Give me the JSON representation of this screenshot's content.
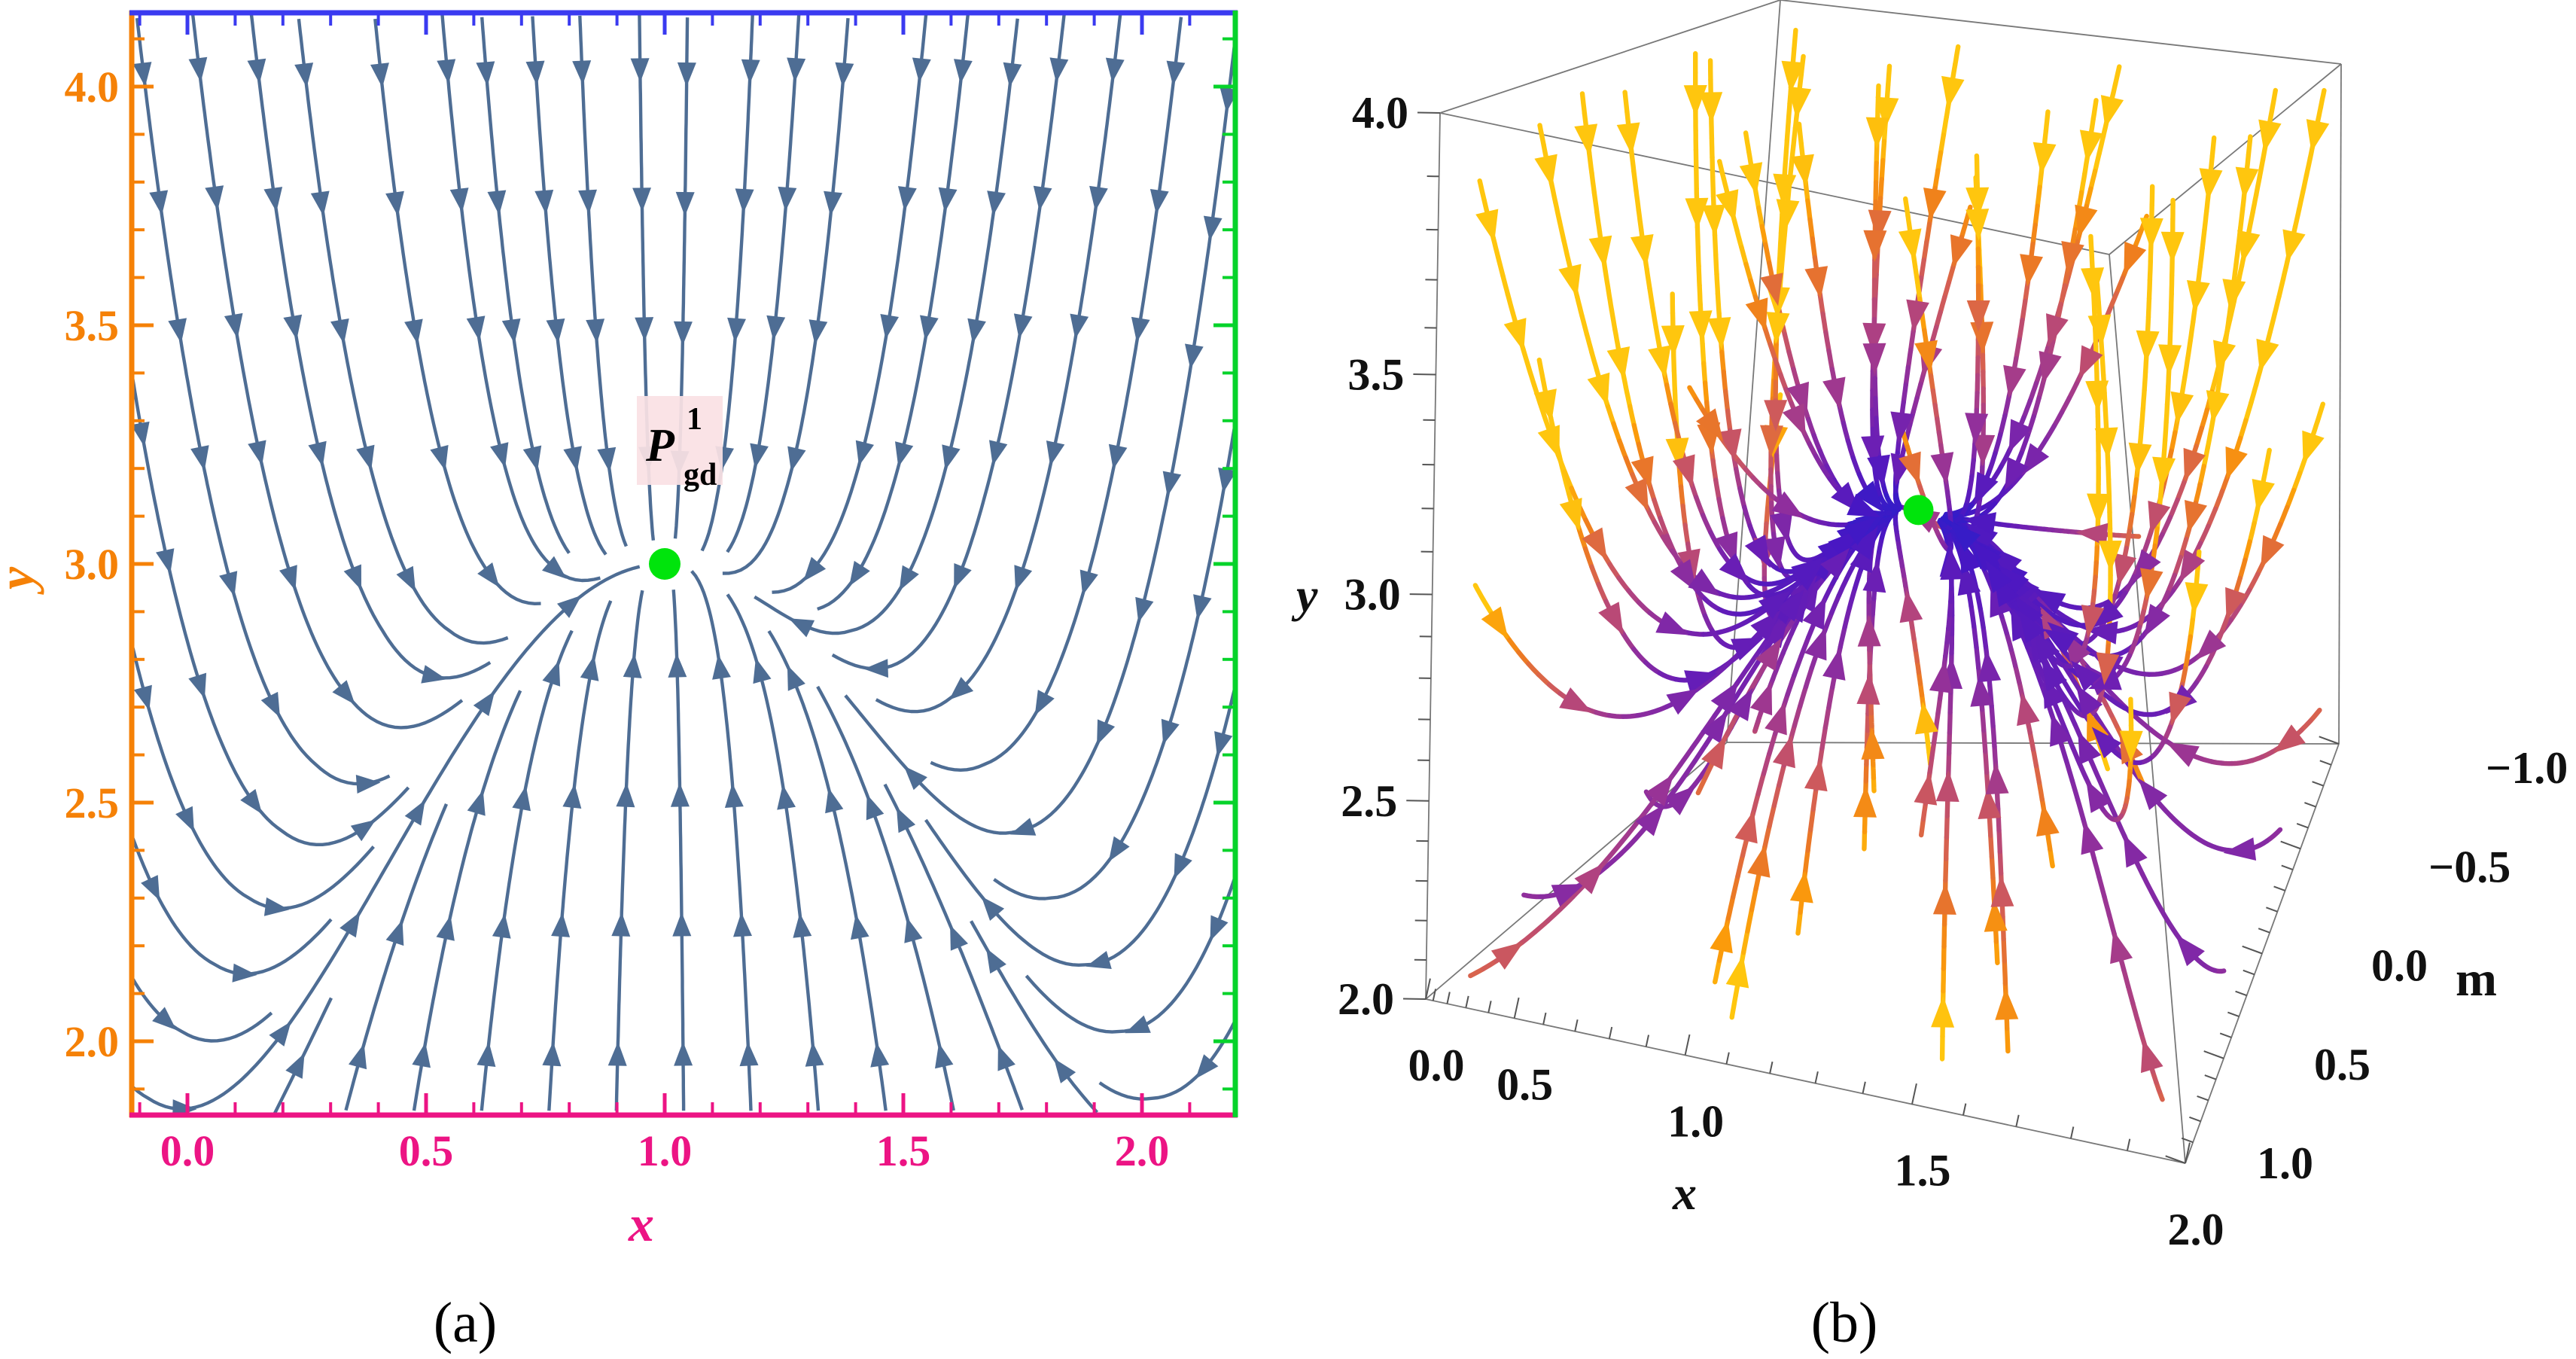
{
  "figure": {
    "background": "#ffffff",
    "captions": {
      "a": "(a)",
      "b": "(b)"
    }
  },
  "chart_data": [
    {
      "type": "stream-2d",
      "panel": "a",
      "xlabel": "x",
      "ylabel": "y",
      "xlim": [
        -0.12,
        2.2
      ],
      "ylim": [
        1.84,
        4.16
      ],
      "xticks": {
        "labels": [
          "0.0",
          "0.5",
          "1.0",
          "1.5",
          "2.0"
        ],
        "values": [
          0,
          0.5,
          1,
          1.5,
          2
        ]
      },
      "yticks": {
        "labels": [
          "2.0",
          "2.5",
          "3.0",
          "3.5",
          "4.0"
        ],
        "values": [
          2,
          2.5,
          3,
          3.5,
          4
        ]
      },
      "minor_tick_step": 0.1,
      "grid": false,
      "frame_colors": {
        "left": "#f58107",
        "bottom": "#ec1484",
        "top": "#3a3af0",
        "right": "#06d32a"
      },
      "tick_label_colors": {
        "x": "#ec1484",
        "y": "#f58107"
      },
      "stream_color": "#4e6d94",
      "fixed_point": {
        "x": 1.0,
        "y": 3.0,
        "marker_color": "#00e40c",
        "label": {
          "base": "P",
          "sup": "1",
          "sub": "gd",
          "text_color": "#000000",
          "bg_color": "#fae1e4"
        }
      }
    },
    {
      "type": "stream-3d",
      "panel": "b",
      "xlabel": "x",
      "ylabel": "y",
      "zlabel": "m",
      "xlim": [
        0,
        2
      ],
      "ylim": [
        2,
        4
      ],
      "mlim": [
        -1,
        1
      ],
      "xticks": {
        "labels": [
          "0.0",
          "0.5",
          "1.0",
          "1.5",
          "2.0"
        ],
        "values": [
          0,
          0.5,
          1,
          1.5,
          2
        ]
      },
      "yticks": {
        "labels": [
          "4.0",
          "3.5",
          "3.0",
          "2.5",
          "2.0"
        ],
        "values": [
          4,
          3.5,
          3,
          2.5,
          2
        ]
      },
      "mticks": {
        "labels": [
          "1.0",
          "0.5",
          "0.0",
          "−0.5",
          "−1.0"
        ],
        "values": [
          1,
          0.5,
          0,
          -0.5,
          -1
        ]
      },
      "minor_tick_step": 0.1,
      "box_color": "#787878",
      "tick_label_color": "#111111",
      "colormap": {
        "name": "speed (slow→fast)",
        "stops": [
          "#2222cc",
          "#6d1fb3",
          "#b4457c",
          "#ee7c1f",
          "#ffc60e"
        ]
      },
      "fixed_point": {
        "x": 1.0,
        "y": 3.0,
        "m": 0.0,
        "marker_color": "#00e40c"
      }
    }
  ]
}
